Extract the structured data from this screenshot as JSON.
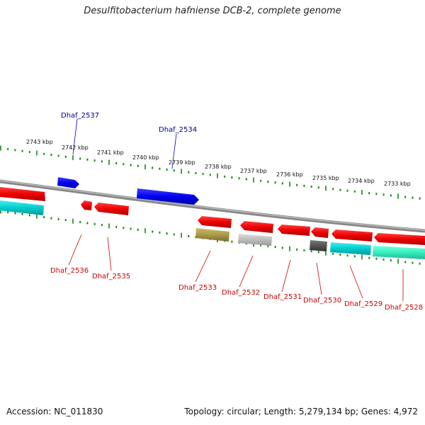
{
  "title": "Desulfitobacterium hafniense DCB-2, complete genome",
  "footer": {
    "accession": "Accession: NC_011830",
    "summary": "Topology: circular; Length: 5,279,134 bp; Genes: 4,972"
  },
  "ruler": {
    "labels": [
      "2743 kbp",
      "2742 kbp",
      "2741 kbp",
      "2740 kbp",
      "2739 kbp",
      "2738 kbp",
      "2737 kbp",
      "2736 kbp",
      "2735 kbp",
      "2734 kbp",
      "2733 kbp"
    ]
  },
  "colors": {
    "forward_gene": "#0000ee",
    "reverse_gene": "#ee0000",
    "forward_label": "#000099",
    "reverse_label": "#cc0000",
    "backbone": "#888888",
    "ticks": "#118811",
    "olive": "#a89a48",
    "grey": "#bbbbbb",
    "darkgrey": "#555555",
    "cyan": "#00cccc",
    "aqua": "#33eebb"
  },
  "labels": {
    "forward": [
      "Dhaf_2537",
      "Dhaf_2534"
    ],
    "reverse": [
      "Dhaf_2536",
      "Dhaf_2535",
      "Dhaf_2533",
      "Dhaf_2532",
      "Dhaf_2531",
      "Dhaf_2530",
      "Dhaf_2529",
      "Dhaf_2528"
    ]
  }
}
